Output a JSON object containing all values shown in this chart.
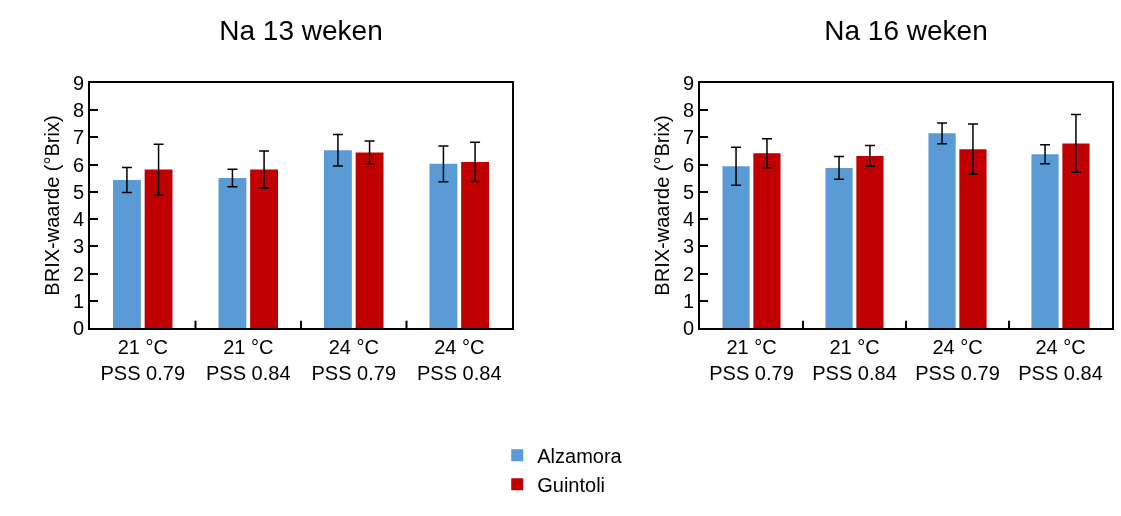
{
  "chart_data": [
    {
      "type": "bar",
      "title": "Na 13 weken",
      "ylabel": "BRIX-waarde (°Brix)",
      "categories": [
        "21 °C\nPSS 0.79",
        "21 °C\nPSS 0.84",
        "24 °C\nPSS 0.79",
        "24 °C\nPSS 0.84"
      ],
      "series": [
        {
          "name": "Alzamora",
          "color": "#5b9bd5",
          "values": [
            5.44,
            5.51,
            6.53,
            6.03
          ],
          "errors": [
            0.46,
            0.32,
            0.58,
            0.66
          ]
        },
        {
          "name": "Guintoli",
          "color": "#c00000",
          "values": [
            5.82,
            5.82,
            6.45,
            6.1
          ],
          "errors": [
            0.93,
            0.68,
            0.42,
            0.72
          ]
        }
      ],
      "ylim": [
        0,
        9
      ],
      "yticks": [
        0,
        1,
        2,
        3,
        4,
        5,
        6,
        7,
        8,
        9
      ],
      "legend": "bottom"
    },
    {
      "type": "bar",
      "title": "Na 16 weken",
      "ylabel": "BRIX-waarde (°Brix)",
      "categories": [
        "21 °C\nPSS 0.79",
        "21 °C\nPSS 0.84",
        "24 °C\nPSS 0.79",
        "24 °C\nPSS 0.84"
      ],
      "series": [
        {
          "color": "#5b9bd5",
          "values": [
            5.94,
            5.88,
            7.15,
            6.38
          ],
          "errors": [
            0.7,
            0.42,
            0.38,
            0.35
          ]
        },
        {
          "color": "#c00000",
          "values": [
            6.42,
            6.32,
            6.57,
            6.78
          ],
          "errors": [
            0.53,
            0.38,
            0.92,
            1.06
          ]
        }
      ],
      "ylim": [
        0,
        9
      ],
      "yticks": [
        0,
        1,
        2,
        3,
        4,
        5,
        6,
        7,
        8,
        9
      ]
    }
  ]
}
